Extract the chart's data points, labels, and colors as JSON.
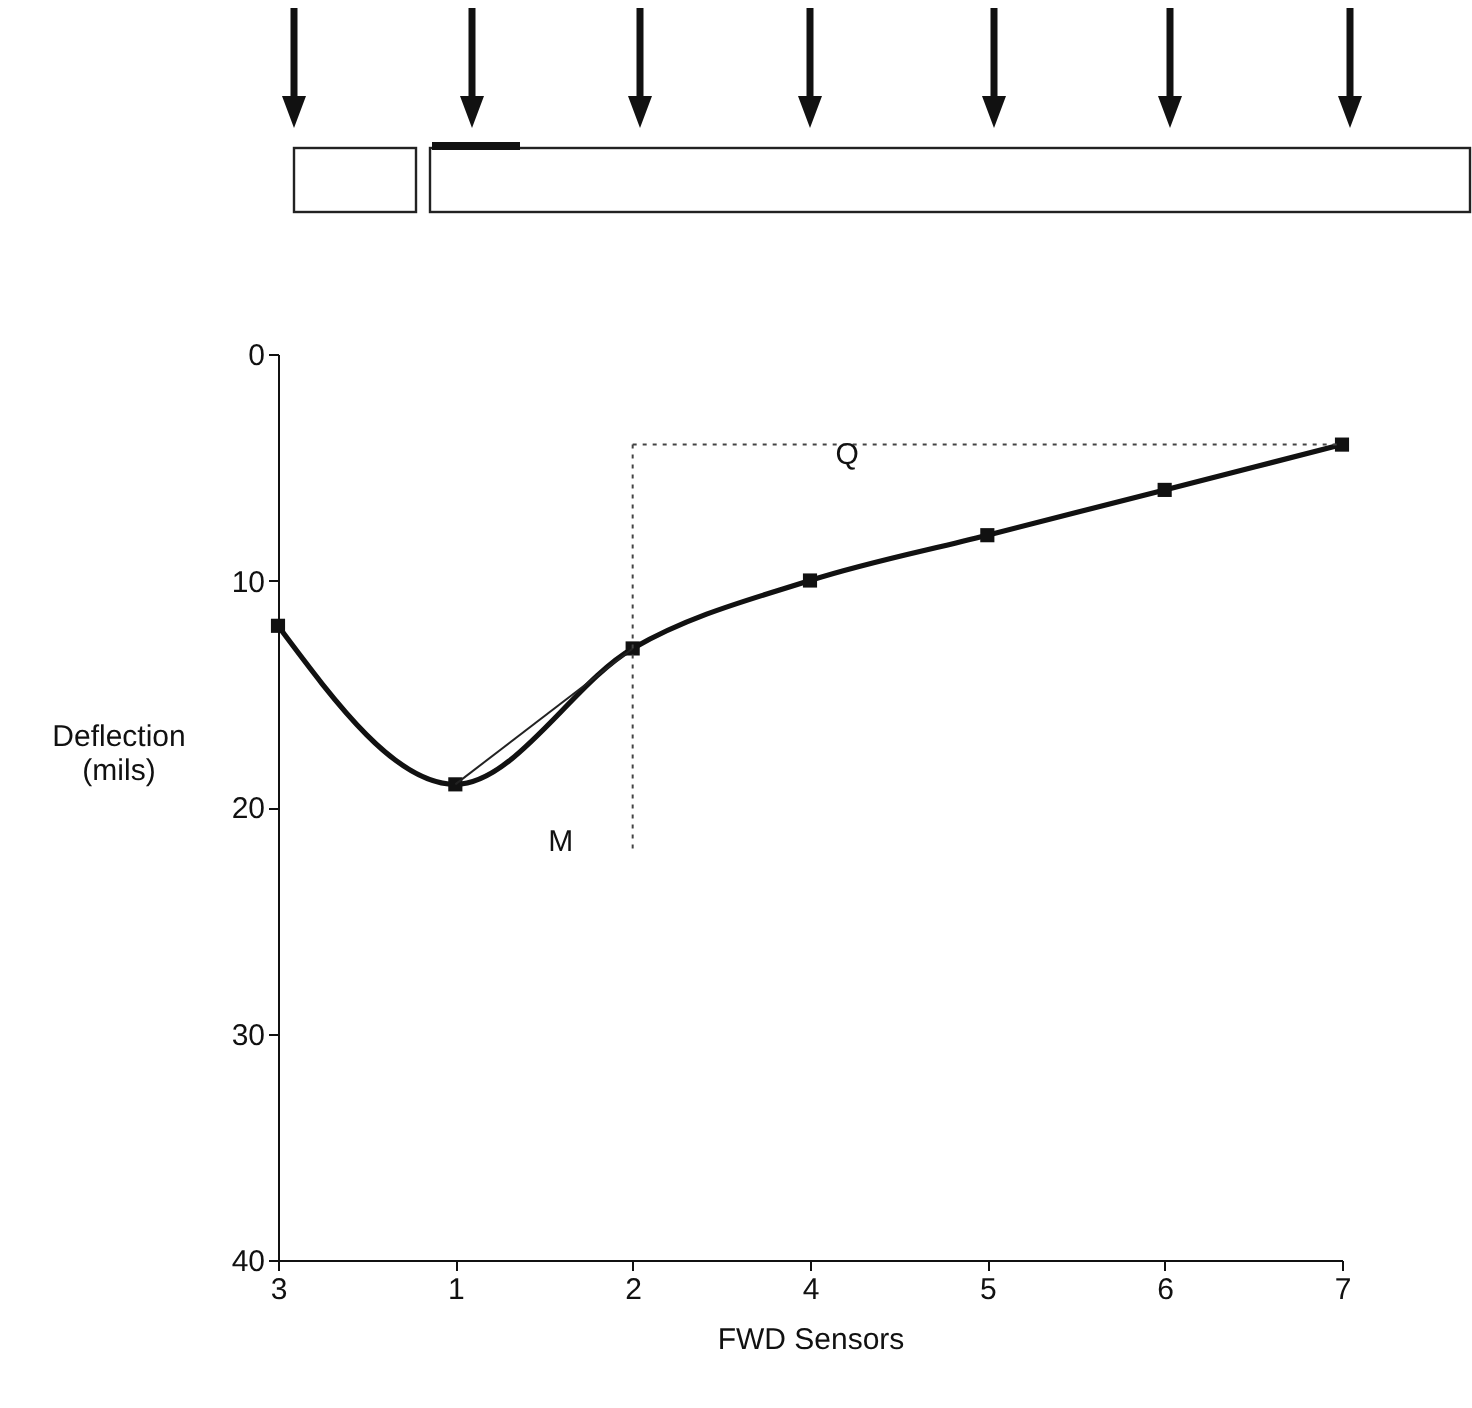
{
  "chart_data": {
    "type": "line",
    "xlabel": "FWD Sensors",
    "ylabel": "Deflection (mils)",
    "categories": [
      "3",
      "1",
      "2",
      "4",
      "5",
      "6",
      "7"
    ],
    "series": [
      {
        "color": "#111111",
        "values": [
          12,
          19,
          13,
          10,
          8,
          6,
          4
        ],
        "marker": "square"
      },
      {
        "color": "#222222",
        "x": [
          "1",
          "2"
        ],
        "values": [
          19,
          13
        ],
        "marker": "none"
      },
      {
        "color": "#444444",
        "x": [
          "2",
          "7"
        ],
        "values": [
          4,
          4
        ],
        "marker": "none",
        "line_style": "dotted"
      },
      {
        "color": "#444444",
        "x": [
          "2",
          "2"
        ],
        "values": [
          4,
          22
        ],
        "marker": "none",
        "line_style": "dotted"
      }
    ],
    "ylim": [
      40,
      0
    ],
    "yticks": [
      0,
      10,
      20,
      30,
      40
    ],
    "annotations": [
      {
        "text": "M",
        "x": "2",
        "y": 21.5
      },
      "Q"
    ]
  }
}
